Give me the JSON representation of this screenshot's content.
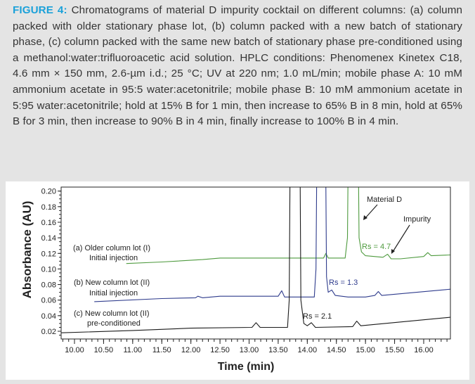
{
  "caption": {
    "label": "FIGURE 4:",
    "text": " Chromatograms of material D impurity cocktail on different columns: (a) column packed with older stationary phase lot, (b) column packed with a new batch of stationary phase, (c) column packed with the same new batch of stationary phase pre-conditioned using a methanol:water:trifluoroacetic acid solution. HPLC conditions: Phenomenex Kinetex C18, 4.6 mm × 150 mm, 2.6-µm i.d.; 25 °C; UV at 220 nm; 1.0 mL/min; mobile phase A: 10 mM ammonium acetate in 95:5 water:acetonitrile; mobile phase B: 10 mM ammonium acetate in 5:95 water:acetonitrile; hold at 15% B for 1 min, then increase to 65% B in 8 min, hold at 65% B for 3 min, then increase to 90% B in 4 min, finally increase to 100% B in 4 min."
  },
  "colors": {
    "accent": "#1ba1d9",
    "a": "#4e9a3e",
    "b": "#2e3b8c",
    "c": "#1a1a1a"
  },
  "chart_data": {
    "type": "line",
    "xlabel": "Time (min)",
    "ylabel": "Absorbance (AU)",
    "xlim": [
      9.77,
      16.46
    ],
    "ylim": [
      0.011,
      0.206
    ],
    "xticks": [
      "10.00",
      "10.50",
      "11.00",
      "11.50",
      "12.00",
      "12.50",
      "13.00",
      "13.50",
      "14.00",
      "14.50",
      "15.00",
      "15.50",
      "16.00"
    ],
    "yticks": [
      "0.02",
      "0.04",
      "0.06",
      "0.08",
      "0.10",
      "0.12",
      "0.14",
      "0.16",
      "0.18",
      "0.20"
    ],
    "grid": false,
    "series": [
      {
        "name": "(a) Older column lot (I)",
        "sub": "Initial injection",
        "color": "#4e9a3e",
        "points": [
          [
            10.89,
            0.107
          ],
          [
            11.5,
            0.109
          ],
          [
            12.2,
            0.112
          ],
          [
            12.5,
            0.114
          ],
          [
            13.2,
            0.114
          ],
          [
            13.5,
            0.114
          ],
          [
            14.28,
            0.114
          ],
          [
            14.32,
            0.12
          ],
          [
            14.36,
            0.114
          ],
          [
            14.65,
            0.114
          ],
          [
            14.69,
            0.14
          ],
          [
            14.71,
            0.3
          ],
          [
            14.87,
            0.3
          ],
          [
            14.89,
            0.14
          ],
          [
            14.93,
            0.122
          ],
          [
            15.0,
            0.117
          ],
          [
            15.3,
            0.115
          ],
          [
            15.38,
            0.119
          ],
          [
            15.44,
            0.113
          ],
          [
            15.6,
            0.113
          ],
          [
            16.0,
            0.116
          ],
          [
            16.07,
            0.121
          ],
          [
            16.13,
            0.117
          ],
          [
            16.46,
            0.118
          ]
        ]
      },
      {
        "name": "(b) New column lot (II)",
        "sub": "Initial injection",
        "color": "#2e3b8c",
        "points": [
          [
            10.34,
            0.058
          ],
          [
            11.5,
            0.062
          ],
          [
            12.08,
            0.063
          ],
          [
            12.12,
            0.065
          ],
          [
            12.2,
            0.063
          ],
          [
            12.5,
            0.065
          ],
          [
            13.5,
            0.065
          ],
          [
            13.56,
            0.072
          ],
          [
            13.61,
            0.064
          ],
          [
            14.12,
            0.064
          ],
          [
            14.15,
            0.1
          ],
          [
            14.17,
            0.3
          ],
          [
            14.31,
            0.3
          ],
          [
            14.33,
            0.09
          ],
          [
            14.36,
            0.07
          ],
          [
            14.42,
            0.073
          ],
          [
            14.48,
            0.066
          ],
          [
            14.7,
            0.064
          ],
          [
            15.0,
            0.064
          ],
          [
            15.16,
            0.066
          ],
          [
            15.22,
            0.071
          ],
          [
            15.28,
            0.066
          ],
          [
            16.46,
            0.074
          ]
        ]
      },
      {
        "name": "(c) New column lot (II)",
        "sub": "pre-conditioned",
        "color": "#1a1a1a",
        "points": [
          [
            9.77,
            0.018
          ],
          [
            11.0,
            0.021
          ],
          [
            12.0,
            0.024
          ],
          [
            13.05,
            0.025
          ],
          [
            13.12,
            0.031
          ],
          [
            13.19,
            0.025
          ],
          [
            13.66,
            0.025
          ],
          [
            13.69,
            0.06
          ],
          [
            13.71,
            0.3
          ],
          [
            13.87,
            0.3
          ],
          [
            13.89,
            0.06
          ],
          [
            13.94,
            0.03
          ],
          [
            14.0,
            0.027
          ],
          [
            14.07,
            0.031
          ],
          [
            14.14,
            0.025
          ],
          [
            14.78,
            0.026
          ],
          [
            14.85,
            0.033
          ],
          [
            14.92,
            0.027
          ],
          [
            16.46,
            0.038
          ]
        ]
      }
    ],
    "annotations": {
      "material_d": "Material D",
      "impurity": "Impurity",
      "rs_a": "Rs = 4.7",
      "rs_b": "Rs = 1.3",
      "rs_c": "Rs = 2.1"
    }
  }
}
